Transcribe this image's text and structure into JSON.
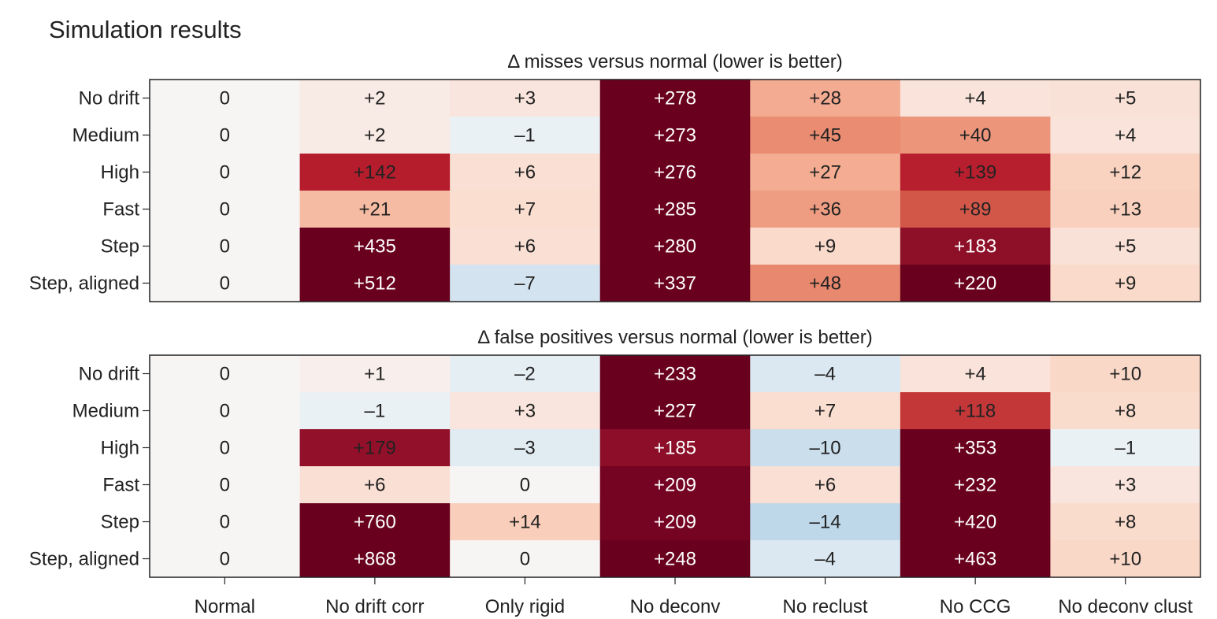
{
  "figure_title": "Simulation results",
  "colors": {
    "zero": "#f7f4f4",
    "scale": "RdBu_r diverging",
    "frame": "#222222"
  },
  "chart_data": [
    {
      "type": "heatmap",
      "title": "Δ misses versus normal (lower is better)",
      "rows": [
        "No drift",
        "Medium",
        "High",
        "Fast",
        "Step",
        "Step, aligned"
      ],
      "columns": [
        "Normal",
        "No drift corr",
        "Only rigid",
        "No deconv",
        "No reclust",
        "No CCG",
        "No deconv clust"
      ],
      "values": [
        [
          0,
          2,
          3,
          278,
          28,
          4,
          5
        ],
        [
          0,
          2,
          -1,
          273,
          45,
          40,
          4
        ],
        [
          0,
          142,
          6,
          276,
          27,
          139,
          12
        ],
        [
          0,
          21,
          7,
          285,
          36,
          89,
          13
        ],
        [
          0,
          435,
          6,
          280,
          9,
          183,
          5
        ],
        [
          0,
          512,
          -7,
          337,
          48,
          220,
          9
        ]
      ],
      "labels": [
        [
          "0",
          "+2",
          "+3",
          "+278",
          "+28",
          "+4",
          "+5"
        ],
        [
          "0",
          "+2",
          "–1",
          "+273",
          "+45",
          "+40",
          "+4"
        ],
        [
          "0",
          "+142",
          "+6",
          "+276",
          "+27",
          "+139",
          "+12"
        ],
        [
          "0",
          "+21",
          "+7",
          "+285",
          "+36",
          "+89",
          "+13"
        ],
        [
          "0",
          "+435",
          "+6",
          "+280",
          "+9",
          "+183",
          "+5"
        ],
        [
          "0",
          "+512",
          "–7",
          "+337",
          "+48",
          "+220",
          "+9"
        ]
      ]
    },
    {
      "type": "heatmap",
      "title": "Δ false positives versus normal (lower is better)",
      "rows": [
        "No drift",
        "Medium",
        "High",
        "Fast",
        "Step",
        "Step, aligned"
      ],
      "columns": [
        "Normal",
        "No drift corr",
        "Only rigid",
        "No deconv",
        "No reclust",
        "No CCG",
        "No deconv clust"
      ],
      "values": [
        [
          0,
          1,
          -2,
          233,
          -4,
          4,
          10
        ],
        [
          0,
          -1,
          3,
          227,
          7,
          118,
          8
        ],
        [
          0,
          179,
          -3,
          185,
          -10,
          353,
          -1
        ],
        [
          0,
          6,
          0,
          209,
          6,
          232,
          3
        ],
        [
          0,
          760,
          14,
          209,
          -14,
          420,
          8
        ],
        [
          0,
          868,
          0,
          248,
          -4,
          463,
          10
        ]
      ],
      "labels": [
        [
          "0",
          "+1",
          "–2",
          "+233",
          "–4",
          "+4",
          "+10"
        ],
        [
          "0",
          "–1",
          "+3",
          "+227",
          "+7",
          "+118",
          "+8"
        ],
        [
          "0",
          "+179",
          "–3",
          "+185",
          "–10",
          "+353",
          "–1"
        ],
        [
          "0",
          "+6",
          "0",
          "+209",
          "+6",
          "+232",
          "+3"
        ],
        [
          "0",
          "+760",
          "+14",
          "+209",
          "–14",
          "+420",
          "+8"
        ],
        [
          "0",
          "+868",
          "0",
          "+248",
          "–4",
          "+463",
          "+10"
        ]
      ]
    }
  ]
}
